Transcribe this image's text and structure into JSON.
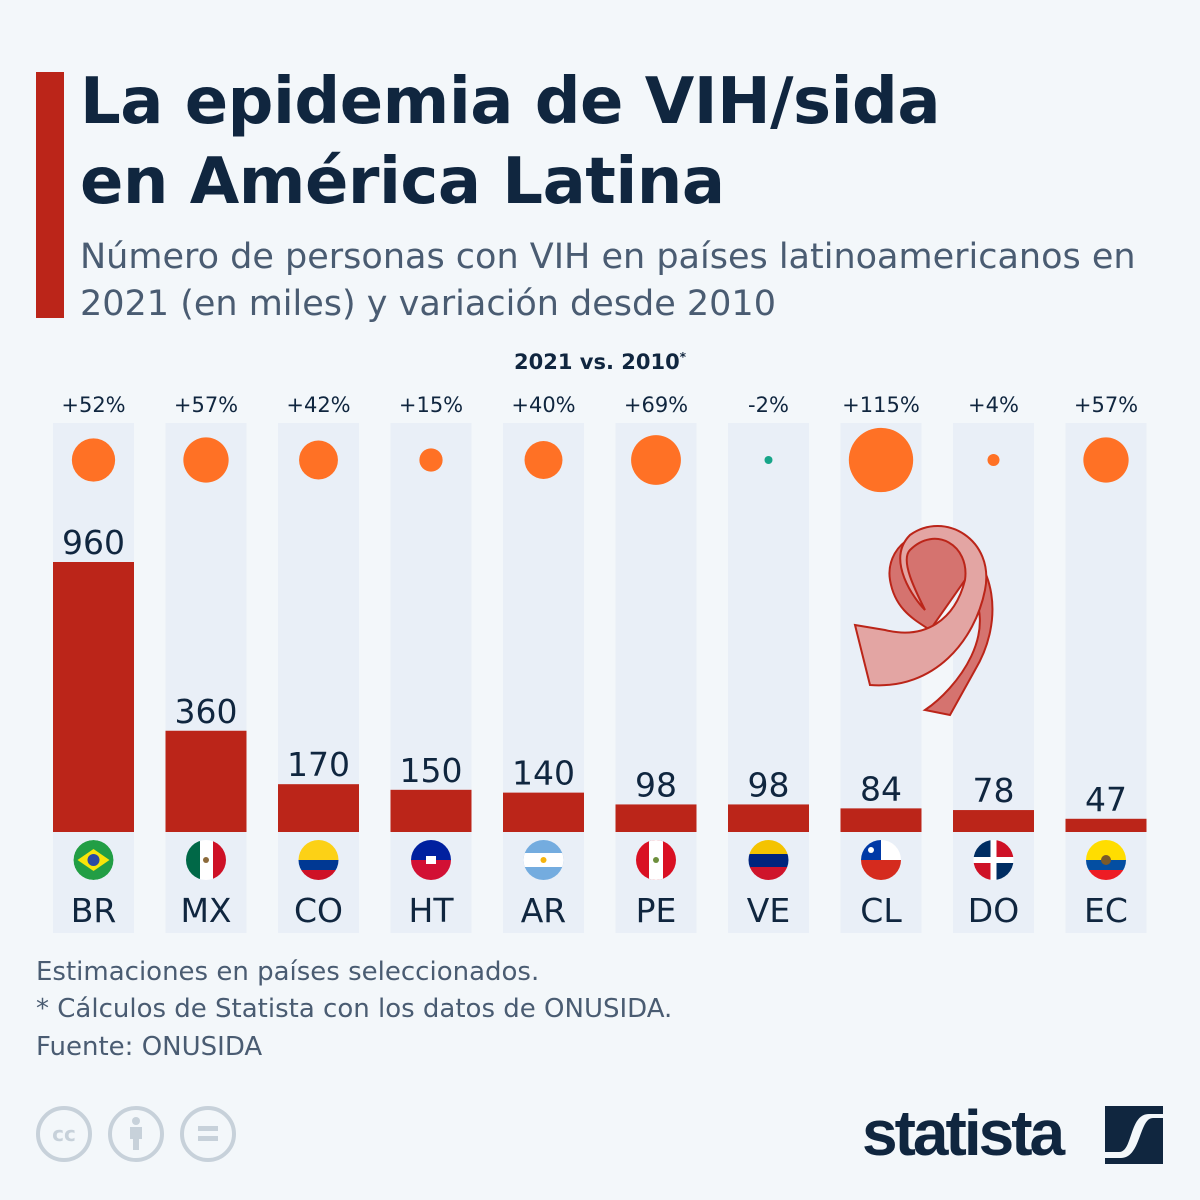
{
  "header": {
    "title_line1": "La epidemia de VIH/sida",
    "title_line2": "en América Latina",
    "subtitle": "Número de personas con VIH en países latinoamericanos en 2021 (en miles) y variación desde 2010"
  },
  "legend": {
    "label": "2021 vs. 2010",
    "marker": "*"
  },
  "chart_data": {
    "type": "bar",
    "categories": [
      "BR",
      "MX",
      "CO",
      "HT",
      "AR",
      "PE",
      "VE",
      "CL",
      "DO",
      "EC"
    ],
    "values": [
      960,
      360,
      170,
      150,
      140,
      98,
      98,
      84,
      78,
      47
    ],
    "change_labels": [
      "+52%",
      "+57%",
      "+42%",
      "+15%",
      "+40%",
      "+69%",
      "-2%",
      "+115%",
      "+4%",
      "+57%"
    ],
    "change_pct": [
      52,
      57,
      42,
      15,
      40,
      69,
      -2,
      115,
      4,
      57
    ],
    "ylim": [
      0,
      960
    ],
    "colors": {
      "bar": "#bb2519",
      "increase": "#ff7125",
      "decrease": "#17a589",
      "panel": "#e9eff7"
    }
  },
  "footer": {
    "note1": "Estimaciones en países seleccionados.",
    "note2": "* Cálculos de Statista con los datos de ONUSIDA.",
    "source": "Fuente: ONUSIDA",
    "license_icons": [
      "cc-icon",
      "attribution-icon",
      "no-derivatives-icon"
    ],
    "cc_text": "cc",
    "brand": "statista"
  }
}
